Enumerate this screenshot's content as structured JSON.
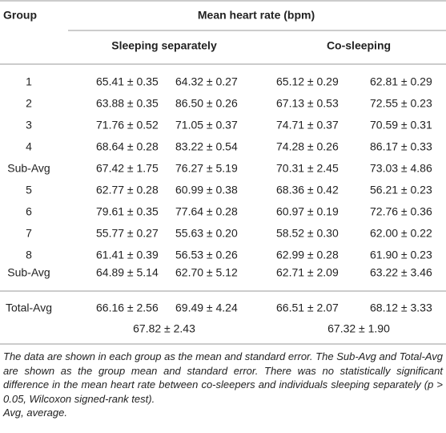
{
  "header": {
    "group": "Group",
    "mean": "Mean heart rate (bpm)",
    "sleeping": "Sleeping separately",
    "cosleeping": "Co-sleeping"
  },
  "table": {
    "rows": [
      [
        "1",
        "65.41 ± 0.35",
        "64.32 ± 0.27",
        "65.12 ± 0.29",
        "62.81 ± 0.29"
      ],
      [
        "2",
        "63.88 ± 0.35",
        "86.50 ± 0.26",
        "67.13 ± 0.53",
        "72.55 ± 0.23"
      ],
      [
        "3",
        "71.76 ± 0.52",
        "71.05 ± 0.37",
        "74.71 ± 0.37",
        "70.59 ± 0.31"
      ],
      [
        "4",
        "68.64 ± 0.28",
        "83.22 ± 0.54",
        "74.28 ± 0.26",
        "86.17 ± 0.33"
      ],
      [
        "Sub-Avg",
        "67.42 ± 1.75",
        "76.27 ± 5.19",
        "70.31 ± 2.45",
        "73.03 ± 4.86"
      ],
      [
        "5",
        "62.77 ± 0.28",
        "60.99 ± 0.38",
        "68.36 ± 0.42",
        "56.21 ± 0.23"
      ],
      [
        "6",
        "79.61 ± 0.35",
        "77.64 ± 0.28",
        "60.97 ± 0.19",
        "72.76 ± 0.36"
      ],
      [
        "7",
        "55.77 ± 0.27",
        "55.63 ± 0.20",
        "58.52 ± 0.30",
        "62.00 ± 0.22"
      ],
      [
        "8",
        "61.41 ± 0.39",
        "56.53 ± 0.26",
        "62.99 ± 0.28",
        "61.90 ± 0.23"
      ],
      [
        "Sub-Avg",
        "64.89 ± 5.14",
        "62.70 ± 5.12",
        "62.71 ± 2.09",
        "63.22 ± 3.46"
      ],
      [
        "Total-Avg",
        "66.16 ± 2.56",
        "69.49 ± 4.24",
        "66.51 ± 2.07",
        "68.12 ± 3.33"
      ]
    ],
    "combined": [
      "67.82 ± 2.43",
      "67.32 ± 1.90"
    ]
  },
  "footnote": {
    "note": "The data are shown in each group as the mean and standard error. The Sub-Avg and Total-Avg are shown as the group mean and standard error. There was no statistically significant difference in the mean heart rate between co-sleepers and individuals sleeping separately (p > 0.05, Wilcoxon signed-rank test).",
    "abbrev": "Avg, average."
  }
}
